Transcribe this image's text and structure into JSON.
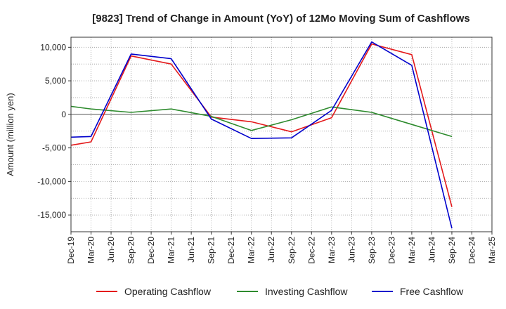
{
  "chart_data": {
    "type": "line",
    "title": "[9823]  Trend of Change in Amount (YoY) of 12Mo Moving Sum of Cashflows",
    "xlabel": "",
    "ylabel": "Amount (million yen)",
    "categories": [
      "Dec-19",
      "Mar-20",
      "Jun-20",
      "Sep-20",
      "Dec-20",
      "Mar-21",
      "Jun-21",
      "Sep-21",
      "Dec-21",
      "Mar-22",
      "Jun-22",
      "Sep-22",
      "Dec-22",
      "Mar-23",
      "Jun-23",
      "Sep-23",
      "Dec-23",
      "Mar-24",
      "Jun-24",
      "Sep-24",
      "Dec-24",
      "Mar-25"
    ],
    "ylim": [
      -17500,
      11500
    ],
    "yticks": [
      10000,
      5000,
      0,
      -5000,
      -10000,
      -15000
    ],
    "ytick_labels": [
      "10,000",
      "5,000",
      "0",
      "-5,000",
      "-10,000",
      "-15,000"
    ],
    "grid": true,
    "legend_position": "bottom",
    "series": [
      {
        "name": "Operating Cashflow",
        "color": "#e41a1c",
        "values": [
          -4600,
          -4100,
          null,
          8700,
          null,
          7500,
          null,
          -400,
          null,
          -1100,
          null,
          -2600,
          null,
          -500,
          null,
          10500,
          null,
          8900,
          null,
          -13800,
          null,
          null
        ]
      },
      {
        "name": "Investing Cashflow",
        "color": "#2e8b2e",
        "values": [
          1200,
          800,
          null,
          300,
          null,
          800,
          null,
          -300,
          null,
          -2400,
          null,
          -800,
          null,
          1100,
          null,
          300,
          null,
          -1500,
          null,
          -3300,
          null,
          null
        ]
      },
      {
        "name": "Free Cashflow",
        "color": "#0000cc",
        "values": [
          -3400,
          -3300,
          null,
          9000,
          null,
          8300,
          null,
          -700,
          null,
          -3600,
          null,
          -3500,
          null,
          600,
          null,
          10800,
          null,
          7300,
          null,
          -17000,
          null,
          null
        ]
      }
    ]
  }
}
